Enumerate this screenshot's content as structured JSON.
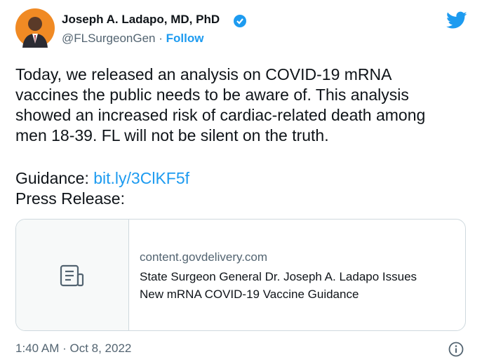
{
  "author": {
    "name": "Joseph A. Ladapo, MD, PhD",
    "handle": "@FLSurgeonGen",
    "separator": "·",
    "follow": "Follow"
  },
  "text_lines": [
    "Today, we released an analysis on COVID-19 mRNA",
    "vaccines the public needs to be aware of. This analysis",
    "showed an increased risk of cardiac-related death among",
    "men 18-39. FL will not be silent on the truth."
  ],
  "guidance": {
    "label": "Guidance:",
    "link": "bit.ly/3ClKF5f"
  },
  "press_release": "Press Release:",
  "card": {
    "domain": "content.govdelivery.com",
    "title_lines": [
      "State Surgeon General Dr. Joseph A. Ladapo Issues",
      "New mRNA COVID-19 Vaccine Guidance"
    ]
  },
  "timestamp": "1:40 AM · Oct 8, 2022"
}
